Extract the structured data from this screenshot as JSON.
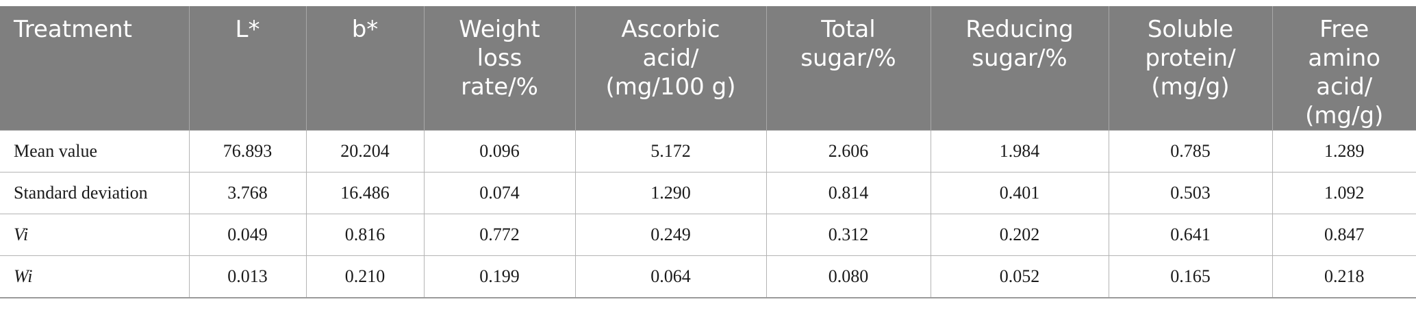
{
  "table": {
    "headers": [
      [
        "Treatment"
      ],
      [
        "L*"
      ],
      [
        "b*"
      ],
      [
        "Weight",
        "loss",
        "rate/%"
      ],
      [
        "Ascorbic",
        "acid/",
        "(mg/100 g)"
      ],
      [
        "Total",
        "sugar/%"
      ],
      [
        "Reducing",
        "sugar/%"
      ],
      [
        "Soluble",
        "protein/",
        "(mg/g)"
      ],
      [
        "Free",
        "amino",
        "acid/",
        "(mg/g)"
      ]
    ],
    "rows": [
      {
        "label": "Mean value",
        "italic": false,
        "values": [
          "76.893",
          "20.204",
          "0.096",
          "5.172",
          "2.606",
          "1.984",
          "0.785",
          "1.289"
        ]
      },
      {
        "label": "Standard deviation",
        "italic": false,
        "values": [
          "3.768",
          "16.486",
          "0.074",
          "1.290",
          "0.814",
          "0.401",
          "0.503",
          "1.092"
        ]
      },
      {
        "label": "Vi",
        "italic": true,
        "values": [
          "0.049",
          "0.816",
          "0.772",
          "0.249",
          "0.312",
          "0.202",
          "0.641",
          "0.847"
        ]
      },
      {
        "label": "Wi",
        "italic": true,
        "values": [
          "0.013",
          "0.210",
          "0.199",
          "0.064",
          "0.080",
          "0.052",
          "0.165",
          "0.218"
        ]
      }
    ]
  },
  "colors": {
    "header_background": "#7f7f7f",
    "header_text": "#ffffff",
    "body_text": "#1a1a1a",
    "grid_line": "#b4b4b4"
  }
}
